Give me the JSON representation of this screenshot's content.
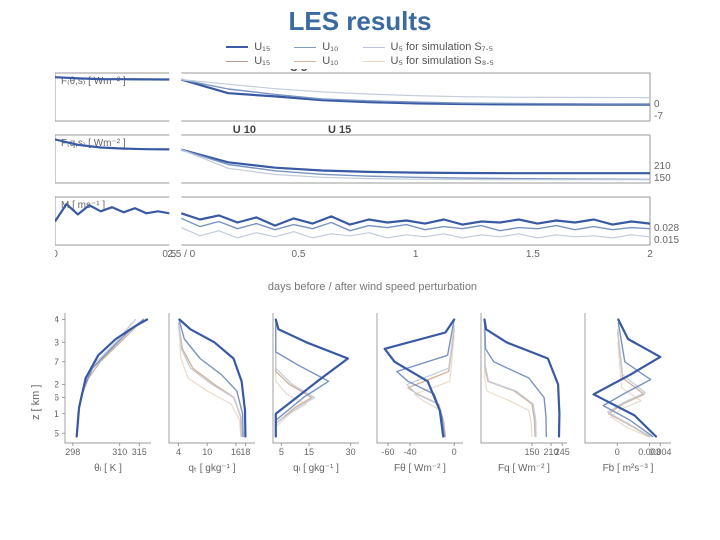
{
  "title": "LES results",
  "legend": {
    "columns": [
      [
        {
          "color": "#3c5aa6",
          "width": 2.4,
          "label": "U₁₅"
        },
        {
          "color": "#b99a8c",
          "width": 1.6,
          "label": "U₁₅"
        }
      ],
      [
        {
          "color": "#7f9bc4",
          "width": 1.8,
          "label": "U₁₀"
        },
        {
          "color": "#d6b59f",
          "width": 1.4,
          "label": "U₁₀"
        }
      ],
      [
        {
          "color": "#b7c6da",
          "width": 1.6,
          "label": "U₅  for simulation S₇.₅"
        },
        {
          "color": "#e8d4c3",
          "width": 1.4,
          "label": "U₅  for simulation S₈.₅"
        }
      ]
    ]
  },
  "colors": {
    "axis": "#777777",
    "grid": "#bbbbbb",
    "bg": "#ffffff",
    "series": {
      "u15_blue": "#3859a3",
      "u10_blue": "#7a94c2",
      "u5_blue": "#c2ccdd",
      "u15_tan": "#b3937f",
      "u10_tan": "#d3b59c",
      "u5_tan": "#eadccc"
    },
    "line_w": {
      "u15": 2.2,
      "u10": 1.4,
      "u5": 1.2
    }
  },
  "timeseries": {
    "left_break_frac": 0.18,
    "rows": [
      {
        "ylabel": "F₍θ,s₎ [ Wm⁻² ]",
        "left_tick": "6",
        "right_ticks": [
          "0",
          "-7"
        ],
        "annotation": {
          "text": "U 5",
          "x": 0.37
        },
        "left": {
          "u15_blue": [
            6.2,
            5.8,
            5.6,
            5.55,
            5.5,
            5.48
          ]
        },
        "right": {
          "u15_blue": [
            5.45,
            1.2,
            0.2,
            -1.0,
            -1.6,
            -2.0,
            -2.2,
            -2.3,
            -2.35,
            -2.4,
            -2.4
          ],
          "u10_blue": [
            5.45,
            2.5,
            0.8,
            -0.6,
            -1.2,
            -1.6,
            -1.9,
            -2.0,
            -2.1,
            -2.15,
            -2.2
          ],
          "u5_blue": [
            5.45,
            4.0,
            2.6,
            1.6,
            0.9,
            0.4,
            0.1,
            -0.05,
            -0.12,
            -0.16,
            -0.2
          ]
        },
        "ylim": [
          -7.5,
          7.5
        ]
      },
      {
        "ylabel": "F₍q,s₎ [ Wm⁻² ]",
        "left_tick": "500",
        "right_ticks": [
          "210",
          "150"
        ],
        "annotations": [
          {
            "text": "U 10",
            "x": 0.28
          },
          {
            "text": "U 15",
            "x": 0.43
          }
        ],
        "left": {
          "u15_blue": [
            520,
            470,
            445,
            435,
            430,
            428
          ]
        },
        "right": {
          "u15_blue": [
            425,
            310,
            260,
            235,
            222,
            215,
            212,
            210,
            210,
            210,
            210
          ],
          "u10_blue": [
            425,
            290,
            232,
            200,
            182,
            172,
            165,
            160,
            157,
            155,
            153
          ],
          "u5_blue": [
            425,
            255,
            198,
            172,
            160,
            155,
            152,
            151,
            150,
            150,
            150
          ]
        },
        "ylim": [
          120,
          560
        ]
      },
      {
        "ylabel": "M [ ms⁻¹ ]",
        "left_tick": "0.04",
        "right_ticks": [
          "0.028",
          "0.015"
        ],
        "left": {
          "u15_blue": [
            0.028,
            0.045,
            0.035,
            0.044,
            0.038,
            0.042,
            0.037,
            0.041,
            0.036,
            0.038,
            0.036
          ]
        },
        "right": {
          "u15_blue": [
            0.036,
            0.03,
            0.034,
            0.027,
            0.032,
            0.024,
            0.031,
            0.026,
            0.033,
            0.025,
            0.03,
            0.027,
            0.029,
            0.026,
            0.03,
            0.025,
            0.028,
            0.027,
            0.03,
            0.026,
            0.029,
            0.027,
            0.03,
            0.025,
            0.028,
            0.026
          ],
          "u10_blue": [
            0.031,
            0.023,
            0.028,
            0.021,
            0.026,
            0.02,
            0.025,
            0.021,
            0.027,
            0.019,
            0.024,
            0.022,
            0.025,
            0.02,
            0.023,
            0.021,
            0.024,
            0.019,
            0.022,
            0.021,
            0.024,
            0.02,
            0.023,
            0.02,
            0.022,
            0.021
          ],
          "u5_blue": [
            0.022,
            0.014,
            0.019,
            0.012,
            0.017,
            0.013,
            0.018,
            0.012,
            0.016,
            0.014,
            0.017,
            0.012,
            0.015,
            0.013,
            0.016,
            0.012,
            0.015,
            0.013,
            0.016,
            0.012,
            0.015,
            0.013,
            0.014,
            0.012,
            0.015,
            0.013
          ]
        },
        "ylim": [
          0.005,
          0.052
        ]
      }
    ],
    "x_left_ticks": [
      "0",
      "0.5"
    ],
    "x_right_ticks": [
      "2.5 / 0",
      "0.5",
      "1",
      "1.5",
      "2"
    ],
    "xlabel": "days before / after wind speed perturbation"
  },
  "profiles": {
    "z_ticks": [
      "4",
      "3.3",
      "2.7",
      "2",
      "1.6",
      "1.1",
      "0.5"
    ],
    "z_vals": [
      4.0,
      3.3,
      2.7,
      2.0,
      1.6,
      1.1,
      0.5
    ],
    "zlabel": "z [ km ]",
    "zlim": [
      0.2,
      4.2
    ],
    "panels": [
      {
        "xticks": [
          "298",
          "310",
          "315"
        ],
        "xtick_vals": [
          298,
          310,
          315
        ],
        "xlim": [
          296,
          318
        ],
        "xlabel": "θₗ [ K ]",
        "curves": {
          "u5_tan": {
            "x": [
              299,
              299.2,
              300,
              301,
              303,
              308,
              313
            ],
            "z": [
              0.4,
              1.0,
              1.6,
              2.0,
              2.5,
              3.1,
              3.9
            ]
          },
          "u10_tan": {
            "x": [
              299,
              299.3,
              300.4,
              302,
              305,
              311,
              316
            ],
            "z": [
              0.4,
              1.1,
              1.7,
              2.2,
              2.7,
              3.4,
              4.0
            ]
          },
          "u5_blue": {
            "x": [
              299,
              299.3,
              300.2,
              301.5,
              304,
              309,
              314
            ],
            "z": [
              0.4,
              1.1,
              1.7,
              2.2,
              2.7,
              3.3,
              4.0
            ]
          },
          "u10_blue": {
            "x": [
              299,
              299.5,
              300.8,
              303,
              307,
              312,
              316
            ],
            "z": [
              0.4,
              1.2,
              1.9,
              2.5,
              3.0,
              3.6,
              4.0
            ]
          },
          "u15_blue": {
            "x": [
              299,
              299.6,
              301.3,
              304.5,
              309,
              314,
              317
            ],
            "z": [
              0.4,
              1.3,
              2.2,
              2.9,
              3.4,
              3.8,
              4.0
            ]
          }
        }
      },
      {
        "xticks": [
          "4",
          "10",
          "16",
          "18"
        ],
        "xtick_vals": [
          4,
          10,
          16,
          18
        ],
        "xlim": [
          2,
          20
        ],
        "xlabel": "qₜ [ gkg⁻¹ ]",
        "curves": {
          "u5_tan": {
            "x": [
              17,
              16.8,
              15.0,
              10.0,
              6.0,
              4.5,
              4.0
            ],
            "z": [
              0.4,
              0.9,
              1.4,
              1.8,
              2.2,
              2.8,
              3.8
            ]
          },
          "u10_tan": {
            "x": [
              17.2,
              17.0,
              15.6,
              11.5,
              7.0,
              4.8,
              4.0
            ],
            "z": [
              0.4,
              1.0,
              1.6,
              2.0,
              2.5,
              3.1,
              3.9
            ]
          },
          "u5_blue": {
            "x": [
              17.3,
              17.1,
              15.5,
              11.0,
              6.5,
              4.6,
              4.1
            ],
            "z": [
              0.4,
              1.0,
              1.6,
              2.0,
              2.5,
              3.1,
              3.9
            ]
          },
          "u10_blue": {
            "x": [
              17.5,
              17.4,
              16.2,
              13.0,
              8.5,
              5.2,
              4.1
            ],
            "z": [
              0.4,
              1.1,
              1.8,
              2.3,
              2.8,
              3.4,
              4.0
            ]
          },
          "u15_blue": {
            "x": [
              18.0,
              17.9,
              17.2,
              15.5,
              11.5,
              6.5,
              4.2
            ],
            "z": [
              0.4,
              1.2,
              2.1,
              2.8,
              3.3,
              3.7,
              4.0
            ]
          }
        }
      },
      {
        "xticks": [
          "5",
          "15",
          "30"
        ],
        "xtick_vals": [
          5,
          15,
          30
        ],
        "xlim": [
          2,
          33
        ],
        "xlabel": "qₗ [ gkg⁻¹ ]",
        "curves": {
          "u5_tan": {
            "x": [
              3,
              3,
              8,
              14,
              7,
              3,
              3
            ],
            "z": [
              0.4,
              0.7,
              1.1,
              1.4,
              1.7,
              2.1,
              3.6
            ]
          },
          "u10_tan": {
            "x": [
              3,
              3,
              10,
              16,
              8,
              3,
              3
            ],
            "z": [
              0.4,
              0.8,
              1.3,
              1.6,
              2.0,
              2.4,
              3.8
            ]
          },
          "u5_blue": {
            "x": [
              3,
              3,
              11,
              17,
              9,
              3,
              3
            ],
            "z": [
              0.4,
              0.8,
              1.3,
              1.6,
              2.0,
              2.5,
              3.8
            ]
          },
          "u10_blue": {
            "x": [
              3,
              3,
              13,
              22,
              11,
              3,
              3
            ],
            "z": [
              0.4,
              0.9,
              1.6,
              2.1,
              2.6,
              3.0,
              4.0
            ]
          },
          "u15_blue": {
            "x": [
              3,
              3,
              18,
              29,
              14,
              4,
              3
            ],
            "z": [
              0.4,
              1.1,
              2.1,
              2.8,
              3.3,
              3.7,
              4.0
            ]
          }
        }
      },
      {
        "xticks": [
          "-60",
          "-40",
          "0"
        ],
        "xtick_vals": [
          -60,
          -40,
          0
        ],
        "xlim": [
          -70,
          8
        ],
        "xlabel": "Fθ [ Wm⁻² ]",
        "curves": {
          "u5_tan": {
            "x": [
              -8,
              -9,
              -12,
              -28,
              -36,
              -4,
              0
            ],
            "z": [
              0.4,
              0.8,
              1.2,
              1.5,
              1.7,
              2.1,
              3.5
            ]
          },
          "u10_tan": {
            "x": [
              -8,
              -10,
              -14,
              -33,
              -42,
              -5,
              0
            ],
            "z": [
              0.4,
              0.9,
              1.4,
              1.7,
              1.9,
              2.4,
              3.7
            ]
          },
          "u5_blue": {
            "x": [
              -9,
              -10,
              -15,
              -34,
              -43,
              -5,
              0
            ],
            "z": [
              0.4,
              0.9,
              1.4,
              1.7,
              2.0,
              2.5,
              3.8
            ]
          },
          "u10_blue": {
            "x": [
              -9,
              -11,
              -18,
              -42,
              -52,
              -6,
              0
            ],
            "z": [
              0.4,
              1.0,
              1.7,
              2.1,
              2.4,
              2.9,
              4.0
            ]
          },
          "u15_blue": {
            "x": [
              -10,
              -13,
              -24,
              -54,
              -63,
              -8,
              0
            ],
            "z": [
              0.4,
              1.2,
              2.1,
              2.7,
              3.1,
              3.6,
              4.0
            ]
          }
        }
      },
      {
        "xticks": [
          "150",
          "210",
          "245"
        ],
        "xtick_vals": [
          150,
          210,
          245
        ],
        "xlim": [
          -10,
          260
        ],
        "xlabel": "Fq [ Wm⁻² ]",
        "curves": {
          "u5_tan": {
            "x": [
              150,
              148,
              140,
              80,
              8,
              2,
              1
            ],
            "z": [
              0.4,
              0.8,
              1.2,
              1.5,
              1.8,
              2.2,
              3.5
            ]
          },
          "u10_tan": {
            "x": [
              160,
              158,
              150,
              95,
              12,
              3,
              1
            ],
            "z": [
              0.4,
              0.9,
              1.4,
              1.8,
              2.1,
              2.5,
              3.7
            ]
          },
          "u5_blue": {
            "x": [
              163,
              162,
              154,
              100,
              14,
              3,
              1
            ],
            "z": [
              0.4,
              0.9,
              1.4,
              1.8,
              2.1,
              2.6,
              3.8
            ]
          },
          "u10_blue": {
            "x": [
              195,
              194,
              188,
              140,
              30,
              4,
              1
            ],
            "z": [
              0.4,
              1.0,
              1.6,
              2.2,
              2.7,
              3.1,
              4.0
            ]
          },
          "u15_blue": {
            "x": [
              235,
              236,
              232,
              200,
              70,
              6,
              1
            ],
            "z": [
              0.4,
              1.1,
              2.0,
              2.8,
              3.3,
              3.7,
              4.0
            ]
          }
        }
      },
      {
        "xticks": [
          "0",
          "0.003",
          "0.004"
        ],
        "xtick_vals": [
          0,
          0.003,
          0.004
        ],
        "xlim": [
          -0.003,
          0.005
        ],
        "xlabel": "Fb [ m²s⁻³ ]",
        "curves": {
          "u5_tan": {
            "x": [
              0.0028,
              0.0008,
              -0.0006,
              0.0004,
              0.0022,
              0.0004,
              5e-05
            ],
            "z": [
              0.4,
              0.7,
              1.0,
              1.25,
              1.5,
              1.9,
              3.3
            ]
          },
          "u10_tan": {
            "x": [
              0.003,
              0.0009,
              -0.0008,
              0.0005,
              0.0025,
              0.0005,
              5e-05
            ],
            "z": [
              0.4,
              0.8,
              1.1,
              1.4,
              1.7,
              2.2,
              3.6
            ]
          },
          "u5_blue": {
            "x": [
              0.0031,
              0.001,
              -0.0009,
              0.0006,
              0.0026,
              0.0005,
              5e-05
            ],
            "z": [
              0.4,
              0.8,
              1.15,
              1.45,
              1.75,
              2.3,
              3.7
            ]
          },
          "u10_blue": {
            "x": [
              0.0033,
              0.0012,
              -0.0013,
              0.0008,
              0.0031,
              0.0007,
              0.0001
            ],
            "z": [
              0.4,
              0.9,
              1.35,
              1.75,
              2.15,
              2.7,
              3.9
            ]
          },
          "u15_blue": {
            "x": [
              0.0036,
              0.0016,
              -0.0022,
              0.0012,
              0.004,
              0.001,
              0.0001
            ],
            "z": [
              0.4,
              1.05,
              1.7,
              2.3,
              2.85,
              3.4,
              4.0
            ]
          }
        }
      }
    ]
  }
}
